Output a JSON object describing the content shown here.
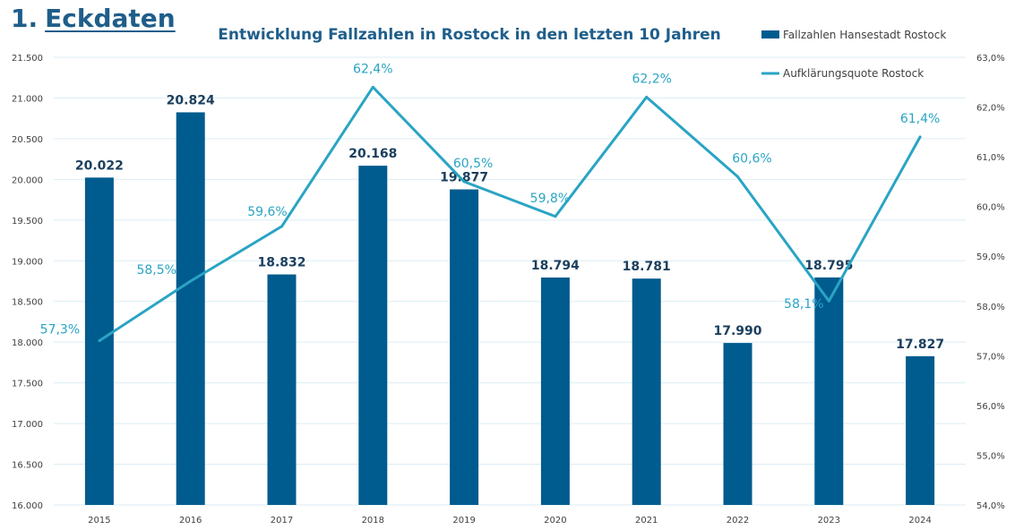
{
  "heading": {
    "number": "1.",
    "word": "Eckdaten"
  },
  "colors": {
    "bar": "#005b8e",
    "line": "#2aa4c4",
    "grid": "#dbeef5",
    "heading": "#1f5e8a"
  },
  "chart_data": {
    "type": "bar",
    "title": "Entwicklung Fallzahlen in Rostock in den letzten 10 Jahren",
    "categories": [
      "2015",
      "2016",
      "2017",
      "2018",
      "2019",
      "2020",
      "2021",
      "2022",
      "2023",
      "2024"
    ],
    "series": [
      {
        "name": "Fallzahlen Hansestadt Rostock",
        "type": "bar",
        "axis": "left",
        "values": [
          20022,
          20824,
          18832,
          20168,
          19877,
          18794,
          18781,
          17990,
          18795,
          17827
        ],
        "labels": [
          "20.022",
          "20.824",
          "18.832",
          "20.168",
          "19.877",
          "18.794",
          "18.781",
          "17.990",
          "18.795",
          "17.827"
        ]
      },
      {
        "name": "Aufklärungsquote Rostock",
        "type": "line",
        "axis": "right",
        "values": [
          57.3,
          58.5,
          59.6,
          62.4,
          60.5,
          59.8,
          62.2,
          60.6,
          58.1,
          61.4
        ],
        "labels": [
          "57,3%",
          "58,5%",
          "59,6%",
          "62,4%",
          "60,5%",
          "59,8%",
          "62,2%",
          "60,6%",
          "58,1%",
          "61,4%"
        ]
      }
    ],
    "y_left": {
      "range": [
        16000,
        21500
      ],
      "ticks": [
        16000,
        16500,
        17000,
        17500,
        18000,
        18500,
        19000,
        19500,
        20000,
        20500,
        21000,
        21500
      ],
      "tick_labels": [
        "16.000",
        "16.500",
        "17.000",
        "17.500",
        "18.000",
        "18.500",
        "19.000",
        "19.500",
        "20.000",
        "20.500",
        "21.000",
        "21.500"
      ]
    },
    "y_right": {
      "range": [
        54.0,
        63.0
      ],
      "ticks": [
        54,
        55,
        56,
        57,
        58,
        59,
        60,
        61,
        62,
        63
      ],
      "tick_labels": [
        "54,0%",
        "55,0%",
        "56,0%",
        "57,0%",
        "58,0%",
        "59,0%",
        "60,0%",
        "61,0%",
        "62,0%",
        "63,0%"
      ]
    },
    "grid": true,
    "legend": "top-right"
  }
}
